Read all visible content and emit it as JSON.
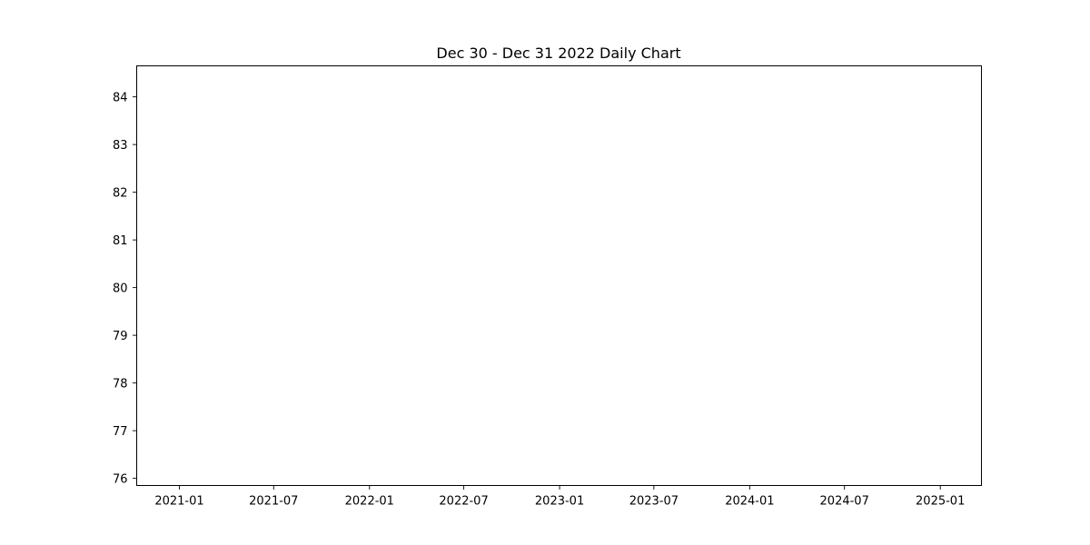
{
  "chart_data": {
    "type": "line",
    "title": "Dec 30 - Dec 31 2022 Daily Chart",
    "xlabel": "",
    "ylabel": "",
    "x_axis_type": "date",
    "xlim": [
      "2020-10-11",
      "2025-03-21"
    ],
    "ylim": [
      75.85,
      84.65
    ],
    "x_ticks": [
      {
        "value": "2021-01-01",
        "label": "2021-01"
      },
      {
        "value": "2021-07-01",
        "label": "2021-07"
      },
      {
        "value": "2022-01-01",
        "label": "2022-01"
      },
      {
        "value": "2022-07-01",
        "label": "2022-07"
      },
      {
        "value": "2023-01-01",
        "label": "2023-01"
      },
      {
        "value": "2023-07-01",
        "label": "2023-07"
      },
      {
        "value": "2024-01-01",
        "label": "2024-01"
      },
      {
        "value": "2024-07-01",
        "label": "2024-07"
      },
      {
        "value": "2025-01-01",
        "label": "2025-01"
      }
    ],
    "y_ticks": [
      {
        "value": 76,
        "label": "76"
      },
      {
        "value": 77,
        "label": "77"
      },
      {
        "value": 78,
        "label": "78"
      },
      {
        "value": 79,
        "label": "79"
      },
      {
        "value": 80,
        "label": "80"
      },
      {
        "value": 81,
        "label": "81"
      },
      {
        "value": 82,
        "label": "82"
      },
      {
        "value": 83,
        "label": "83"
      },
      {
        "value": 84,
        "label": "84"
      }
    ],
    "grid": false,
    "series": []
  }
}
